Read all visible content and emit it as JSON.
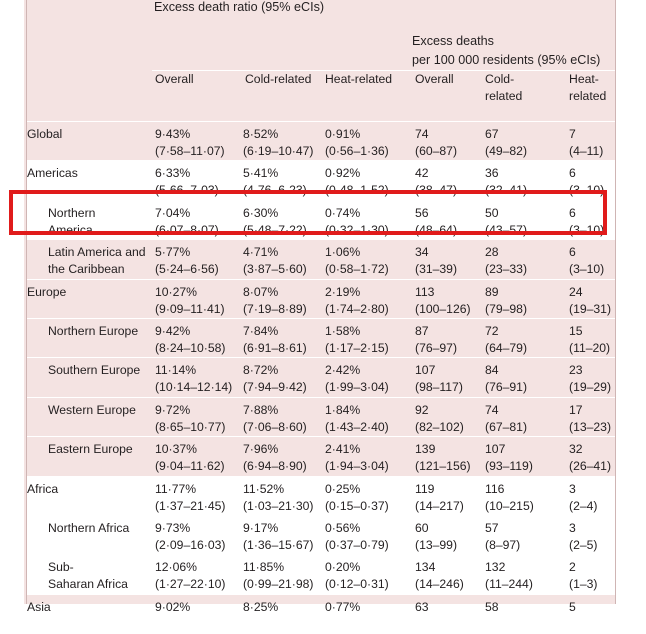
{
  "header": {
    "group1": "Excess death ratio (95% eCIs)",
    "group2_line1": "Excess deaths",
    "group2_line2": "per 100 000 residents (95% eCIs)",
    "cols": {
      "overall1": "Overall",
      "cold1": "Cold-related",
      "heat1": "Heat-related",
      "overall2": "Overall",
      "cold2_l1": "Cold-",
      "cold2_l2": "related",
      "heat2_l1": "Heat-",
      "heat2_l2": "related"
    }
  },
  "rows": [
    {
      "label1": "Global",
      "label2": "",
      "indent": false,
      "r1": "9·43%",
      "ci1": "(7·58–11·07)",
      "r2": "8·52%",
      "ci2": "(6·19–10·47)",
      "r3": "0·91%",
      "ci3": "(0·56–1·36)",
      "d1": "74",
      "dci1": "(60–87)",
      "d2": "67",
      "dci2": "(49–82)",
      "d3": "7",
      "dci3": "(4–11)"
    },
    {
      "label1": "Americas",
      "label2": "",
      "indent": false,
      "r1": "6·33%",
      "ci1": "(5·66–7·03)",
      "r2": "5·41%",
      "ci2": "(4·76–6·23)",
      "r3": "0·92%",
      "ci3": "(0·48–1·52)",
      "d1": "42",
      "dci1": "(38–47)",
      "d2": "36",
      "dci2": "(32–41)",
      "d3": "6",
      "dci3": "(3–10)"
    },
    {
      "label1": "Northern",
      "label2": "America",
      "indent": true,
      "r1": "7·04%",
      "ci1": "(6·07–8·07)",
      "r2": "6·30%",
      "ci2": "(5·48–7·22)",
      "r3": "0·74%",
      "ci3": "(0·32–1·30)",
      "d1": "56",
      "dci1": "(48–64)",
      "d2": "50",
      "dci2": "(43–57)",
      "d3": "6",
      "dci3": "(3–10)"
    },
    {
      "label1": "Latin America and",
      "label2": "the Caribbean",
      "indent": true,
      "r1": "5·77%",
      "ci1": "(5·24–6·56)",
      "r2": "4·71%",
      "ci2": "(3·87–5·60)",
      "r3": "1·06%",
      "ci3": "(0·58–1·72)",
      "d1": "34",
      "dci1": "(31–39)",
      "d2": "28",
      "dci2": "(23–33)",
      "d3": "6",
      "dci3": "(3–10)"
    },
    {
      "label1": "Europe",
      "label2": "",
      "indent": false,
      "r1": "10·27%",
      "ci1": "(9·09–11·41)",
      "r2": "8·07%",
      "ci2": "(7·19–8·89)",
      "r3": "2·19%",
      "ci3": "(1·74–2·80)",
      "d1": "113",
      "dci1": "(100–126)",
      "d2": "89",
      "dci2": "(79–98)",
      "d3": "24",
      "dci3": "(19–31)"
    },
    {
      "label1": "Northern Europe",
      "label2": "",
      "indent": true,
      "r1": "9·42%",
      "ci1": "(8·24–10·58)",
      "r2": "7·84%",
      "ci2": "(6·91–8·61)",
      "r3": "1·58%",
      "ci3": "(1·17–2·15)",
      "d1": "87",
      "dci1": "(76–97)",
      "d2": "72",
      "dci2": "(64–79)",
      "d3": "15",
      "dci3": "(11–20)"
    },
    {
      "label1": "Southern Europe",
      "label2": "",
      "indent": true,
      "r1": "11·14%",
      "ci1": "(10·14–12·14)",
      "r2": "8·72%",
      "ci2": "(7·94–9·42)",
      "r3": "2·42%",
      "ci3": "(1·99–3·04)",
      "d1": "107",
      "dci1": "(98–117)",
      "d2": "84",
      "dci2": "(76–91)",
      "d3": "23",
      "dci3": "(19–29)"
    },
    {
      "label1": "Western Europe",
      "label2": "",
      "indent": true,
      "r1": "9·72%",
      "ci1": "(8·65–10·77)",
      "r2": "7·88%",
      "ci2": "(7·06–8·60)",
      "r3": "1·84%",
      "ci3": "(1·43–2·40)",
      "d1": "92",
      "dci1": "(82–102)",
      "d2": "74",
      "dci2": "(67–81)",
      "d3": "17",
      "dci3": "(13–23)"
    },
    {
      "label1": "Eastern Europe",
      "label2": "",
      "indent": true,
      "r1": "10·37%",
      "ci1": "(9·04–11·62)",
      "r2": "7·96%",
      "ci2": "(6·94–8·90)",
      "r3": "2·41%",
      "ci3": "(1·94–3·04)",
      "d1": "139",
      "dci1": "(121–156)",
      "d2": "107",
      "dci2": "(93–119)",
      "d3": "32",
      "dci3": "(26–41)"
    },
    {
      "label1": "Africa",
      "label2": "",
      "indent": false,
      "r1": "11·77%",
      "ci1": "(1·37–21·45)",
      "r2": "11·52%",
      "ci2": "(1·03–21·30)",
      "r3": "0·25%",
      "ci3": "(0·15–0·37)",
      "d1": "119",
      "dci1": "(14–217)",
      "d2": "116",
      "dci2": "(10–215)",
      "d3": "3",
      "dci3": "(2–4)"
    },
    {
      "label1": "Northern Africa",
      "label2": "",
      "indent": true,
      "r1": "9·73%",
      "ci1": "(2·09–16·03)",
      "r2": "9·17%",
      "ci2": "(1·36–15·67)",
      "r3": "0·56%",
      "ci3": "(0·37–0·79)",
      "d1": "60",
      "dci1": "(13–99)",
      "d2": "57",
      "dci2": "(8–97)",
      "d3": "3",
      "dci3": "(2–5)"
    },
    {
      "label1": "Sub-",
      "label2": "Saharan Africa",
      "indent": true,
      "r1": "12·06%",
      "ci1": "(1·27–22·10)",
      "r2": "11·85%",
      "ci2": "(0·99–21·98)",
      "r3": "0·20%",
      "ci3": "(0·12–0·31)",
      "d1": "134",
      "dci1": "(14–246)",
      "d2": "132",
      "dci2": "(11–244)",
      "d3": "2",
      "dci3": "(1–3)"
    },
    {
      "label1": "Asia",
      "label2": "",
      "indent": false,
      "r1": "9·02%",
      "ci1": "",
      "r2": "8·25%",
      "ci2": "",
      "r3": "0·77%",
      "ci3": "",
      "d1": "63",
      "dci1": "",
      "d2": "58",
      "dci2": "",
      "d3": "5",
      "dci3": ""
    }
  ],
  "highlight_row": "Northern America",
  "colors": {
    "pink": "#f4e3e2",
    "white": "#ffffff",
    "highlight": "#e01b1b"
  }
}
